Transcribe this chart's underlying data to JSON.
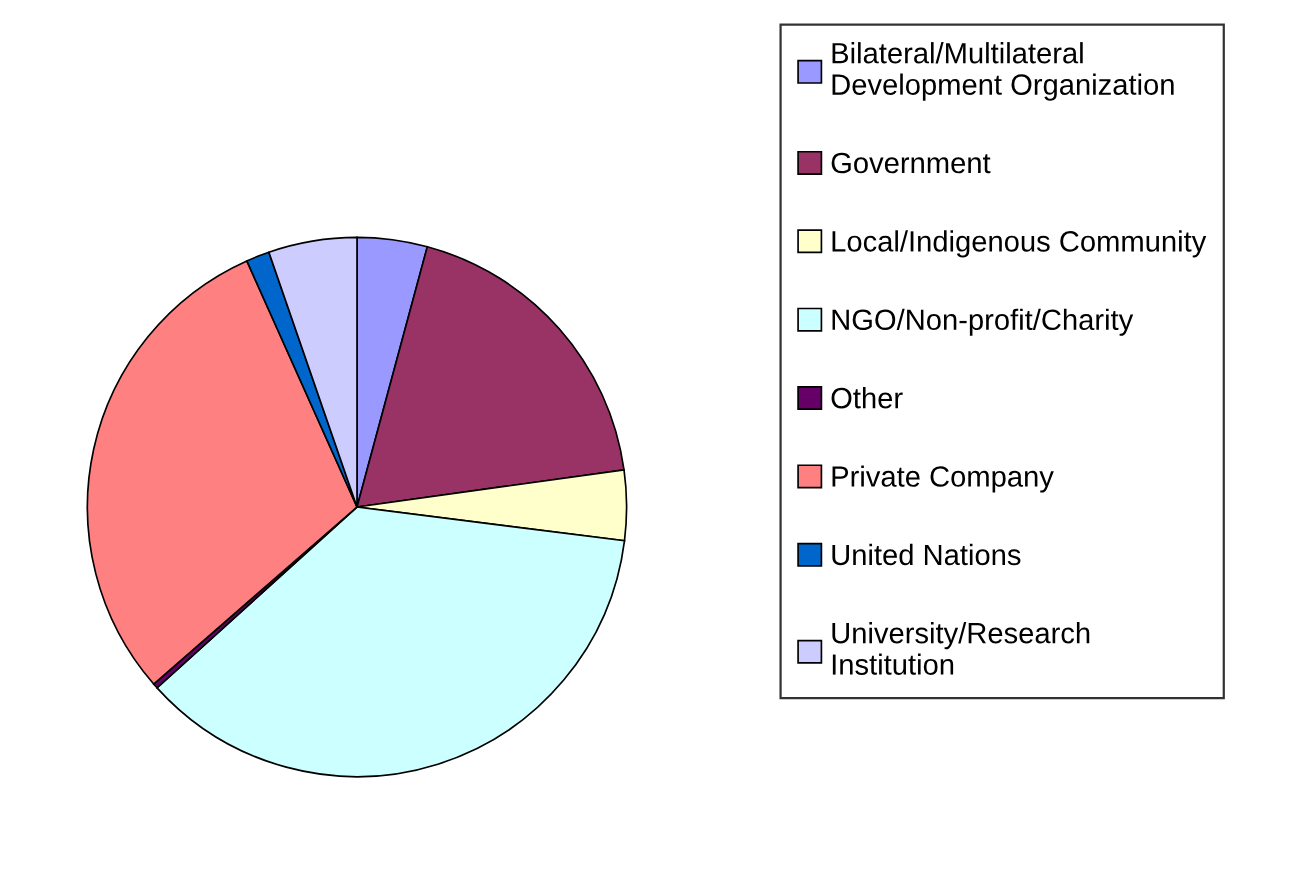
{
  "chart_data": {
    "type": "pie",
    "categories": [
      "Bilateral/Multilateral\nDevelopment Organization",
      "Government",
      "Local/Indigenous Community",
      "NGO/Non-profit/Charity",
      "Other",
      "Private Company",
      "United Nations",
      "University/Research\nInstitution"
    ],
    "values": [
      4.2,
      18.6,
      4.2,
      36.3,
      0.3,
      29.7,
      1.4,
      5.3
    ],
    "colors": [
      "#9999ff",
      "#993366",
      "#ffffcc",
      "#ccffff",
      "#660066",
      "#ff8080",
      "#0066cc",
      "#ccccff"
    ],
    "legend": "right"
  }
}
